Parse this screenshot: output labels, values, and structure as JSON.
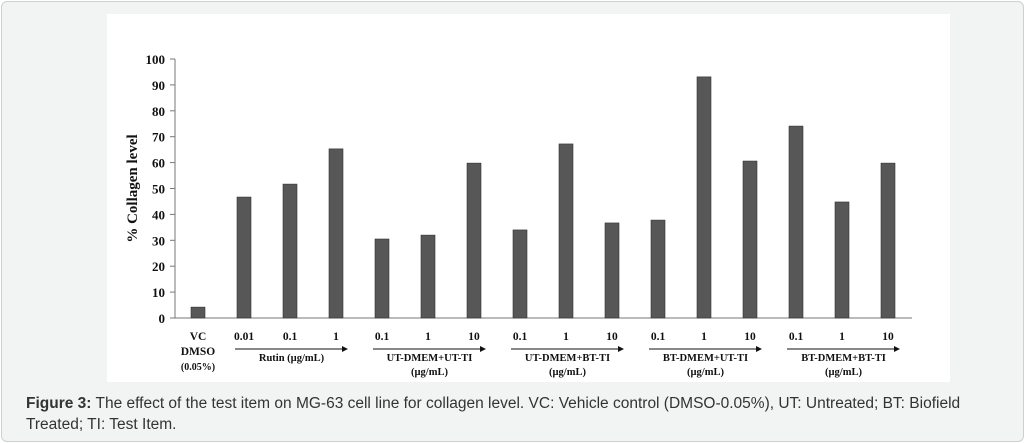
{
  "chart_data": {
    "type": "bar",
    "ylabel": "% Collagen level",
    "ylim": [
      0,
      100
    ],
    "yticks": [
      0,
      10,
      20,
      30,
      40,
      50,
      60,
      70,
      80,
      90,
      100
    ],
    "bar_color": "#575757",
    "grid": false,
    "categories": [
      "VC DMSO (0.05%)",
      "0.01",
      "0.1",
      "1",
      "0.1",
      "1",
      "10",
      "0.1",
      "1",
      "10",
      "0.1",
      "1",
      "10",
      "0.1",
      "1",
      "10"
    ],
    "values": [
      4.2,
      46.7,
      51.7,
      65.3,
      30.5,
      32.0,
      59.8,
      34.0,
      67.2,
      36.7,
      37.8,
      93.1,
      60.6,
      74.1,
      44.8,
      59.8
    ],
    "vc_label": [
      "VC",
      "DMSO",
      "(0.05%)"
    ],
    "groups": [
      {
        "lines": [
          "Rutin (µg/mL)"
        ],
        "start": 1,
        "end": 3
      },
      {
        "lines": [
          "UT-DMEM+UT-TI",
          "(µg/mL)"
        ],
        "start": 4,
        "end": 6
      },
      {
        "lines": [
          "UT-DMEM+BT-TI",
          "(µg/mL)"
        ],
        "start": 7,
        "end": 9
      },
      {
        "lines": [
          "BT-DMEM+UT-TI",
          "(µg/mL)"
        ],
        "start": 10,
        "end": 12
      },
      {
        "lines": [
          "BT-DMEM+BT-TI",
          "(µg/mL)"
        ],
        "start": 13,
        "end": 15
      }
    ]
  },
  "caption": {
    "label": "Figure 3:",
    "text": " The effect of the test item on MG-63 cell line for collagen level. VC: Vehicle control (DMSO-0.05%), UT: Untreated; BT: Biofield Treated; TI: Test Item."
  }
}
